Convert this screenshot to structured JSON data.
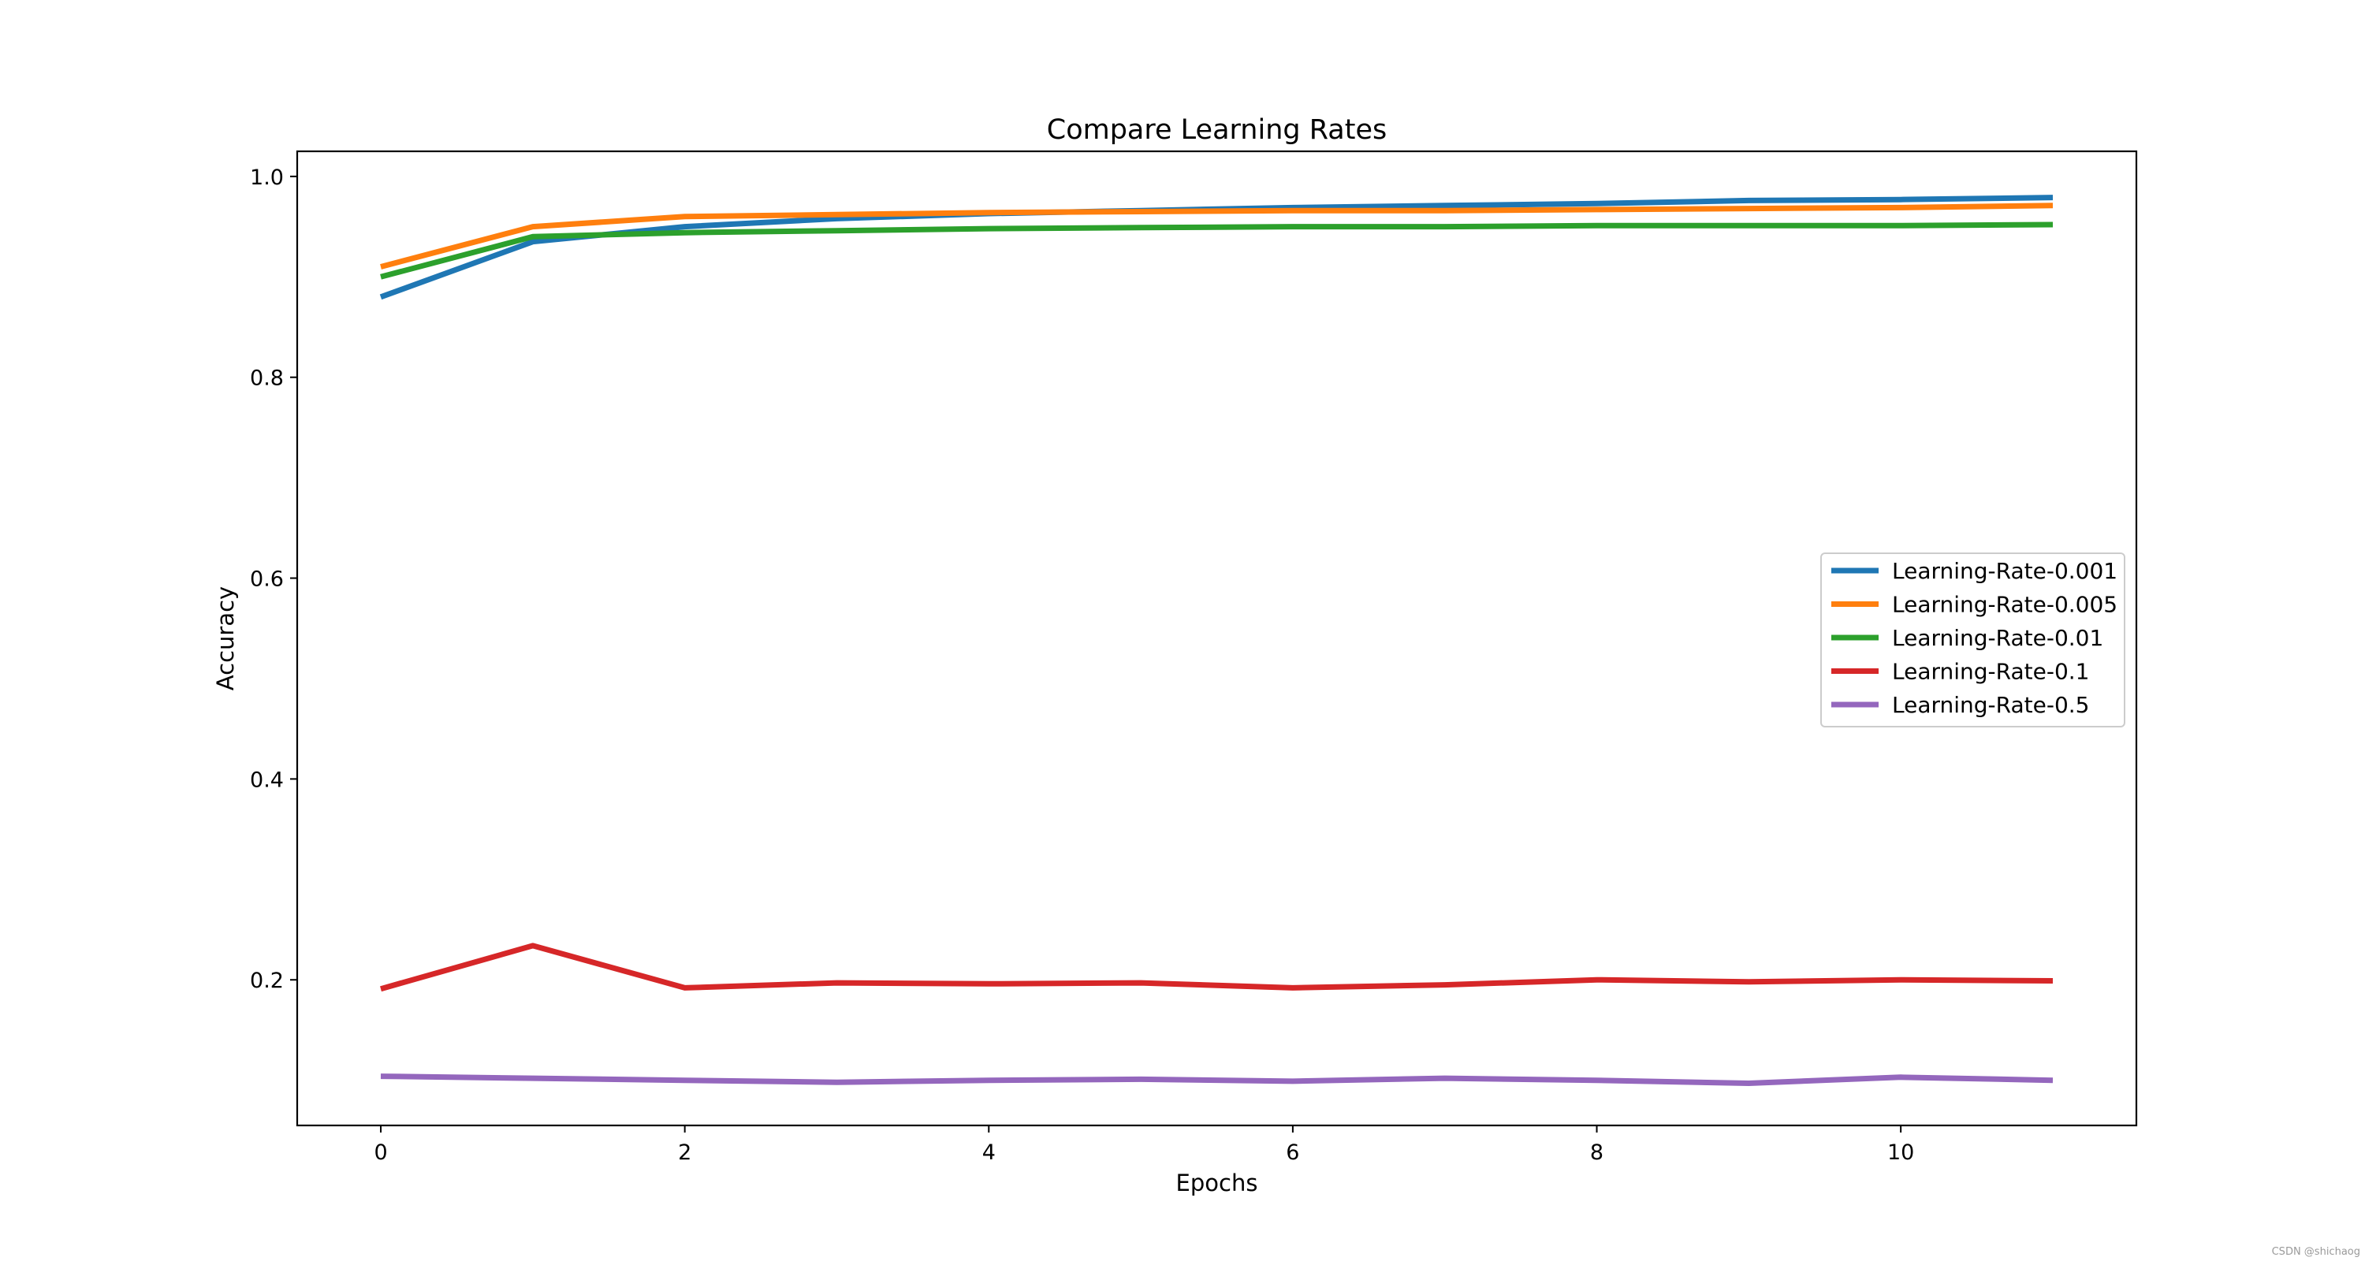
{
  "chart_data": {
    "type": "line",
    "title": "Compare Learning Rates",
    "xlabel": "Epochs",
    "ylabel": "Accuracy",
    "x": [
      0,
      1,
      2,
      3,
      4,
      5,
      6,
      7,
      8,
      9,
      10,
      11
    ],
    "xlim": [
      -0.55,
      11.55
    ],
    "ylim": [
      0.055,
      1.025
    ],
    "xticks": [
      0,
      2,
      4,
      6,
      8,
      10
    ],
    "yticks": [
      0.2,
      0.4,
      0.6,
      0.8,
      1.0
    ],
    "ytick_labels": [
      "0.2",
      "0.4",
      "0.6",
      "0.8",
      "1.0"
    ],
    "legend_position": "center-right",
    "series": [
      {
        "name": "Learning-Rate-0.001",
        "color": "#1f77b4",
        "values": [
          0.88,
          0.935,
          0.95,
          0.958,
          0.963,
          0.966,
          0.969,
          0.971,
          0.973,
          0.976,
          0.977,
          0.979
        ]
      },
      {
        "name": "Learning-Rate-0.005",
        "color": "#ff7f0e",
        "values": [
          0.91,
          0.95,
          0.96,
          0.962,
          0.964,
          0.965,
          0.966,
          0.966,
          0.967,
          0.968,
          0.969,
          0.971
        ]
      },
      {
        "name": "Learning-Rate-0.01",
        "color": "#2ca02c",
        "values": [
          0.9,
          0.94,
          0.944,
          0.946,
          0.948,
          0.949,
          0.95,
          0.95,
          0.951,
          0.951,
          0.951,
          0.952
        ]
      },
      {
        "name": "Learning-Rate-0.1",
        "color": "#d62728",
        "values": [
          0.191,
          0.234,
          0.192,
          0.197,
          0.196,
          0.197,
          0.192,
          0.195,
          0.2,
          0.198,
          0.2,
          0.199
        ]
      },
      {
        "name": "Learning-Rate-0.5",
        "color": "#9467bd",
        "values": [
          0.104,
          0.102,
          0.1,
          0.098,
          0.1,
          0.101,
          0.099,
          0.102,
          0.1,
          0.097,
          0.103,
          0.1
        ]
      }
    ]
  },
  "watermark": "CSDN @shichaog"
}
